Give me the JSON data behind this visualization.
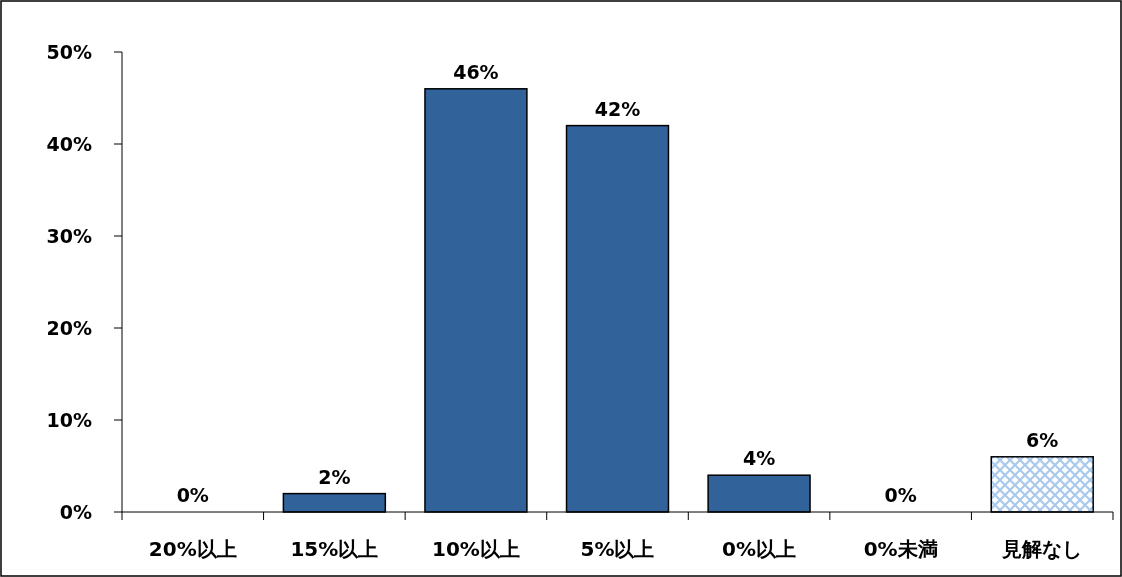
{
  "chart_data": {
    "type": "bar",
    "categories": [
      "20%以上",
      "15%以上",
      "10%以上",
      "5%以上",
      "0%以上",
      "0%未満",
      "見解なし"
    ],
    "values": [
      0,
      2,
      46,
      42,
      4,
      0,
      6
    ],
    "colors": [
      "#31639a",
      "#31639a",
      "#31639a",
      "#31639a",
      "#31639a",
      "#31639a",
      "#a8c8ec"
    ],
    "value_labels": [
      "0%",
      "2%",
      "46%",
      "42%",
      "4%",
      "0%",
      "6%"
    ],
    "ylim": [
      0,
      50
    ],
    "yticks": [
      {
        "value": 0,
        "label": "0%"
      },
      {
        "value": 10,
        "label": "10%"
      },
      {
        "value": 20,
        "label": "20%"
      },
      {
        "value": 30,
        "label": "30%"
      },
      {
        "value": 40,
        "label": "40%"
      },
      {
        "value": 50,
        "label": "50%"
      }
    ],
    "grid": false
  }
}
